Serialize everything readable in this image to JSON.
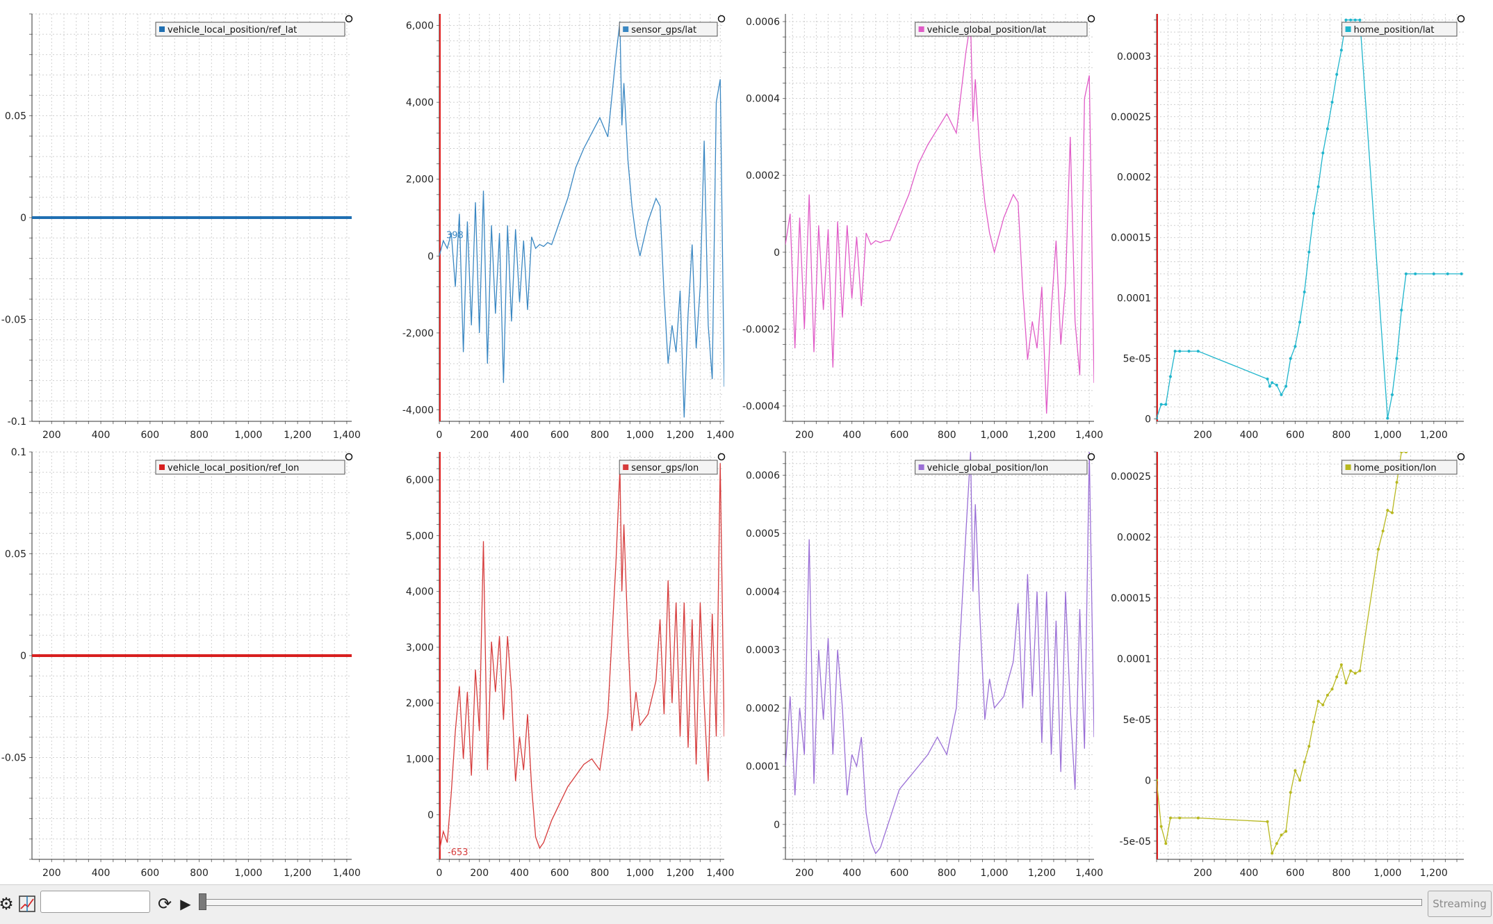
{
  "panels": [
    {
      "legend": "vehicle_local_position/ref_lat",
      "color": "#1f6fb2",
      "x_ticks": [
        "200",
        "400",
        "600",
        "800",
        "1,000",
        "1,200",
        "1,400"
      ],
      "y_ticks": [
        "0.05",
        "0",
        "-0.05",
        "-0.1"
      ],
      "annotation": "",
      "chart_data": {
        "type": "line",
        "x_range": [
          120,
          1420
        ],
        "y_range": [
          -0.1,
          0.1
        ],
        "series": [
          {
            "name": "vehicle_local_position/ref_lat",
            "x": [
              120,
              1420
            ],
            "y": [
              0,
              0
            ]
          }
        ]
      }
    },
    {
      "legend": "sensor_gps/lat",
      "color": "#3a87c2",
      "x_ticks": [
        "0",
        "200",
        "400",
        "600",
        "800",
        "1,000",
        "1,200",
        "1,400"
      ],
      "y_ticks": [
        "6,000",
        "4,000",
        "2,000",
        "0",
        "-2,000",
        "-4,000"
      ],
      "annotation": "398",
      "chart_data": {
        "type": "line",
        "x_range": [
          0,
          1420
        ],
        "y_range": [
          -4300,
          6300
        ],
        "series": [
          {
            "name": "sensor_gps/lat",
            "x": [
              0,
              20,
              40,
              60,
              80,
              100,
              120,
              140,
              160,
              180,
              200,
              220,
              240,
              260,
              280,
              300,
              320,
              340,
              360,
              380,
              400,
              420,
              440,
              460,
              480,
              500,
              520,
              540,
              560,
              580,
              600,
              640,
              680,
              720,
              760,
              800,
              840,
              880,
              900,
              910,
              920,
              940,
              960,
              980,
              1000,
              1040,
              1080,
              1100,
              1120,
              1140,
              1160,
              1180,
              1200,
              1220,
              1240,
              1260,
              1280,
              1300,
              1320,
              1340,
              1360,
              1380,
              1400,
              1420
            ],
            "y": [
              0,
              398,
              200,
              600,
              -800,
              1100,
              -2500,
              900,
              -1800,
              1400,
              -2000,
              1700,
              -2800,
              800,
              -1500,
              600,
              -3300,
              800,
              -1700,
              700,
              -1200,
              400,
              -1400,
              500,
              200,
              300,
              250,
              350,
              300,
              600,
              900,
              1500,
              2300,
              2800,
              3200,
              3600,
              3100,
              5200,
              6100,
              3400,
              4500,
              2500,
              1300,
              500,
              0,
              900,
              1500,
              1300,
              -1000,
              -2800,
              -1800,
              -2500,
              -900,
              -4200,
              -1500,
              300,
              -2400,
              -800,
              3000,
              -1800,
              -3200,
              4000,
              4600,
              -3400
            ]
          }
        ]
      }
    },
    {
      "legend": "vehicle_global_position/lat",
      "color": "#e05bc7",
      "x_ticks": [
        "200",
        "400",
        "600",
        "800",
        "1,000",
        "1,200",
        "1,400"
      ],
      "y_ticks": [
        "0.0006",
        "0.0004",
        "0.0002",
        "0",
        "-0.0002",
        "-0.0004"
      ],
      "annotation": "",
      "chart_data": {
        "type": "line",
        "x_range": [
          120,
          1420
        ],
        "y_range": [
          -0.00044,
          0.00062
        ],
        "series": [
          {
            "name": "vehicle_global_position/lat",
            "x": [
              120,
              140,
              160,
              180,
              200,
              220,
              240,
              260,
              280,
              300,
              320,
              340,
              360,
              380,
              400,
              420,
              440,
              460,
              480,
              500,
              520,
              540,
              560,
              580,
              600,
              640,
              680,
              720,
              760,
              800,
              840,
              880,
              900,
              910,
              920,
              940,
              960,
              980,
              1000,
              1040,
              1080,
              1100,
              1120,
              1140,
              1160,
              1180,
              1200,
              1220,
              1240,
              1260,
              1280,
              1300,
              1320,
              1340,
              1360,
              1380,
              1400,
              1420
            ],
            "y": [
              2e-05,
              0.0001,
              -0.00025,
              9e-05,
              -0.0002,
              0.00015,
              -0.00026,
              7e-05,
              -0.00015,
              6e-05,
              -0.0003,
              8e-05,
              -0.00017,
              7e-05,
              -0.00012,
              4e-05,
              -0.00014,
              5e-05,
              2e-05,
              3e-05,
              2.5e-05,
              3e-05,
              3e-05,
              6e-05,
              9e-05,
              0.00015,
              0.00023,
              0.00028,
              0.00032,
              0.00036,
              0.00031,
              0.00052,
              0.0006,
              0.00034,
              0.00045,
              0.00025,
              0.00013,
              5e-05,
              0,
              9e-05,
              0.00015,
              0.00013,
              -0.0001,
              -0.00028,
              -0.00018,
              -0.00025,
              -9e-05,
              -0.00042,
              -0.00015,
              3e-05,
              -0.00024,
              -8e-05,
              0.0003,
              -0.00018,
              -0.00032,
              0.0004,
              0.00046,
              -0.00034
            ]
          }
        ]
      }
    },
    {
      "legend": "home_position/lat",
      "color": "#1fb5cc",
      "x_ticks": [
        "200",
        "400",
        "600",
        "800",
        "1,000",
        "1,200"
      ],
      "y_ticks": [
        "0.0003",
        "0.00025",
        "0.0002",
        "0.00015",
        "0.0001",
        "5e-05",
        "0"
      ],
      "annotation": "",
      "chart_data": {
        "type": "line",
        "x_range": [
          0,
          1330
        ],
        "y_range": [
          -2e-06,
          0.000335
        ],
        "series": [
          {
            "name": "home_position/lat",
            "x": [
              0,
              20,
              40,
              60,
              80,
              100,
              140,
              180,
              480,
              490,
              500,
              520,
              540,
              560,
              580,
              600,
              620,
              640,
              660,
              680,
              700,
              720,
              740,
              760,
              780,
              800,
              820,
              840,
              860,
              880,
              1000,
              1020,
              1040,
              1060,
              1080,
              1120,
              1200,
              1260,
              1320
            ],
            "y": [
              5e-07,
              1.2e-05,
              1.2e-05,
              3.5e-05,
              5.6e-05,
              5.6e-05,
              5.6e-05,
              5.6e-05,
              3.3e-05,
              2.7e-05,
              3e-05,
              2.8e-05,
              2e-05,
              2.7e-05,
              5e-05,
              6e-05,
              8e-05,
              0.000105,
              0.000138,
              0.00017,
              0.000192,
              0.00022,
              0.00024,
              0.000262,
              0.000285,
              0.000305,
              0.00033,
              0.00033,
              0.00033,
              0.00033,
              5e-07,
              2e-05,
              5e-05,
              9e-05,
              0.00012,
              0.00012,
              0.00012,
              0.00012,
              0.00012
            ]
          }
        ]
      }
    },
    {
      "legend": "vehicle_local_position/ref_lon",
      "color": "#d81f1f",
      "x_ticks": [
        "200",
        "400",
        "600",
        "800",
        "1,000",
        "1,200",
        "1,400"
      ],
      "y_ticks": [
        "0.1",
        "0.05",
        "0",
        "-0.05"
      ],
      "annotation": "",
      "chart_data": {
        "type": "line",
        "x_range": [
          120,
          1420
        ],
        "y_range": [
          -0.1,
          0.1
        ],
        "series": [
          {
            "name": "vehicle_local_position/ref_lon",
            "x": [
              120,
              1420
            ],
            "y": [
              0,
              0
            ]
          }
        ]
      }
    },
    {
      "legend": "sensor_gps/lon",
      "color": "#d63b3b",
      "x_ticks": [
        "0",
        "200",
        "400",
        "600",
        "800",
        "1,000",
        "1,200",
        "1,400"
      ],
      "y_ticks": [
        "6,000",
        "5,000",
        "4,000",
        "3,000",
        "2,000",
        "1,000",
        "0"
      ],
      "annotation": "-653",
      "chart_data": {
        "type": "line",
        "x_range": [
          0,
          1420
        ],
        "y_range": [
          -800,
          6500
        ],
        "series": [
          {
            "name": "sensor_gps/lon",
            "x": [
              0,
              20,
              40,
              60,
              80,
              100,
              120,
              140,
              160,
              180,
              200,
              220,
              240,
              260,
              280,
              300,
              320,
              340,
              360,
              380,
              400,
              420,
              440,
              460,
              480,
              500,
              520,
              560,
              600,
              640,
              680,
              720,
              760,
              800,
              840,
              880,
              900,
              910,
              920,
              940,
              960,
              980,
              1000,
              1040,
              1080,
              1100,
              1120,
              1140,
              1160,
              1180,
              1200,
              1220,
              1240,
              1260,
              1280,
              1300,
              1320,
              1340,
              1360,
              1380,
              1400,
              1420
            ],
            "y": [
              -653,
              -300,
              -500,
              400,
              1500,
              2300,
              1000,
              2200,
              700,
              2600,
              1500,
              4900,
              800,
              3100,
              2200,
              3200,
              1700,
              3200,
              2200,
              600,
              1400,
              800,
              1800,
              500,
              -400,
              -600,
              -500,
              -100,
              200,
              500,
              700,
              900,
              1000,
              800,
              1800,
              4500,
              6200,
              4000,
              5200,
              3200,
              1500,
              2200,
              1600,
              1800,
              2400,
              3500,
              1800,
              4200,
              2000,
              3800,
              1400,
              3800,
              1200,
              3500,
              900,
              3800,
              2000,
              600,
              3600,
              1400,
              6300,
              1400
            ]
          }
        ]
      }
    },
    {
      "legend": "vehicle_global_position/lon",
      "color": "#9a6fd6",
      "x_ticks": [
        "200",
        "400",
        "600",
        "800",
        "1,000",
        "1,200",
        "1,400"
      ],
      "y_ticks": [
        "0.0006",
        "0.0005",
        "0.0004",
        "0.0003",
        "0.0002",
        "0.0001",
        "0"
      ],
      "annotation": "",
      "chart_data": {
        "type": "line",
        "x_range": [
          120,
          1420
        ],
        "y_range": [
          -6e-05,
          0.00064
        ],
        "series": [
          {
            "name": "vehicle_global_position/lon",
            "x": [
              120,
              140,
              160,
              180,
              200,
              220,
              240,
              260,
              280,
              300,
              320,
              340,
              360,
              380,
              400,
              420,
              440,
              460,
              480,
              500,
              520,
              560,
              600,
              640,
              680,
              720,
              760,
              800,
              840,
              880,
              900,
              910,
              920,
              940,
              960,
              980,
              1000,
              1040,
              1080,
              1100,
              1120,
              1140,
              1160,
              1180,
              1200,
              1220,
              1240,
              1260,
              1280,
              1300,
              1320,
              1340,
              1360,
              1380,
              1400,
              1420
            ],
            "y": [
              0.0001,
              0.00022,
              5e-05,
              0.0002,
              0.00012,
              0.00049,
              7e-05,
              0.0003,
              0.00018,
              0.00032,
              0.00012,
              0.0003,
              0.0002,
              5e-05,
              0.00012,
              0.0001,
              0.00015,
              2e-05,
              -3e-05,
              -5e-05,
              -4e-05,
              1e-05,
              6e-05,
              8e-05,
              0.0001,
              0.00012,
              0.00015,
              0.00012,
              0.0002,
              0.0005,
              0.00064,
              0.0004,
              0.00055,
              0.00035,
              0.00018,
              0.00025,
              0.0002,
              0.00022,
              0.00028,
              0.00038,
              0.0002,
              0.00043,
              0.00022,
              0.0004,
              0.00014,
              0.0004,
              0.00012,
              0.00035,
              9e-05,
              0.0004,
              0.0002,
              6e-05,
              0.00037,
              0.00013,
              0.00064,
              0.00015
            ]
          }
        ]
      }
    },
    {
      "legend": "home_position/lon",
      "color": "#b8b81f",
      "x_ticks": [
        "200",
        "400",
        "600",
        "800",
        "1,000",
        "1,200"
      ],
      "y_ticks": [
        "0.00025",
        "0.0002",
        "0.00015",
        "0.0001",
        "5e-05",
        "0",
        "-5e-05"
      ],
      "annotation": "",
      "chart_data": {
        "type": "line",
        "x_range": [
          0,
          1330
        ],
        "y_range": [
          -6.5e-05,
          0.00027
        ],
        "series": [
          {
            "name": "home_position/lon",
            "x": [
              0,
              20,
              40,
              60,
              100,
              180,
              480,
              500,
              520,
              540,
              560,
              580,
              600,
              620,
              640,
              660,
              680,
              700,
              720,
              740,
              760,
              780,
              800,
              820,
              840,
              860,
              880,
              960,
              980,
              1000,
              1020,
              1040,
              1060,
              1080
            ],
            "y": [
              0,
              -3.8e-05,
              -5.2e-05,
              -3.1e-05,
              -3.1e-05,
              -3.1e-05,
              -3.4e-05,
              -6e-05,
              -5.2e-05,
              -4.5e-05,
              -4.2e-05,
              -1e-05,
              8e-06,
              0,
              1.5e-05,
              2.8e-05,
              4.8e-05,
              6.5e-05,
              6.2e-05,
              7e-05,
              7.5e-05,
              8.5e-05,
              9.5e-05,
              8e-05,
              9e-05,
              8.8e-05,
              9e-05,
              0.00019,
              0.000205,
              0.000222,
              0.00022,
              0.000245,
              0.00027,
              0.00027
            ]
          }
        ]
      }
    }
  ],
  "toolbar": {
    "time_input_value": "",
    "streaming_label": "Streaming",
    "progress_fraction": 0.0
  }
}
